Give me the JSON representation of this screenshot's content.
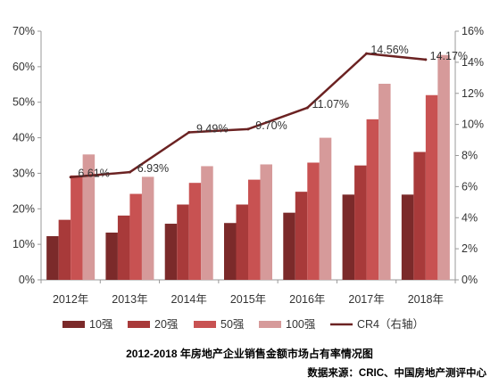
{
  "chart_data": {
    "type": "bar",
    "categories": [
      "2012年",
      "2013年",
      "2014年",
      "2015年",
      "2016年",
      "2017年",
      "2018年"
    ],
    "series": [
      {
        "name": "10强",
        "color": "#7b2a2a",
        "axis": "left",
        "values": [
          12.3,
          13.3,
          15.8,
          16.0,
          18.9,
          24.0,
          24.0
        ]
      },
      {
        "name": "20强",
        "color": "#a83a3a",
        "axis": "left",
        "values": [
          16.9,
          18.1,
          21.2,
          21.2,
          24.8,
          32.2,
          36.0
        ]
      },
      {
        "name": "50强",
        "color": "#c85252",
        "axis": "left",
        "values": [
          29.4,
          24.2,
          27.3,
          28.2,
          33.0,
          45.2,
          52.0
        ]
      },
      {
        "name": "100强",
        "color": "#d69a9a",
        "axis": "left",
        "values": [
          35.3,
          29.0,
          32.0,
          32.5,
          40.0,
          55.2,
          63.3
        ]
      }
    ],
    "line": {
      "name": "CR4（右轴）",
      "color": "#6b2222",
      "axis": "right",
      "values": [
        6.61,
        6.93,
        9.49,
        9.7,
        11.07,
        14.56,
        14.17
      ],
      "labels": [
        "6.61%",
        "6.93%",
        "9.49%",
        "9.70%",
        "11.07%",
        "14.56%",
        "14.17%"
      ]
    },
    "y_left": {
      "min": 0,
      "max": 70,
      "step": 10,
      "ticks": [
        "0%",
        "10%",
        "20%",
        "30%",
        "40%",
        "50%",
        "60%",
        "70%"
      ]
    },
    "y_right": {
      "min": 0,
      "max": 16,
      "step": 2,
      "ticks": [
        "0%",
        "2%",
        "4%",
        "6%",
        "8%",
        "10%",
        "12%",
        "14%",
        "16%"
      ]
    },
    "grid": false,
    "legend_position": "bottom"
  },
  "caption": "2012-2018 年房地产企业销售金额市场占有率情况图",
  "source": "数据来源：CRIC、中国房地产测评中心"
}
